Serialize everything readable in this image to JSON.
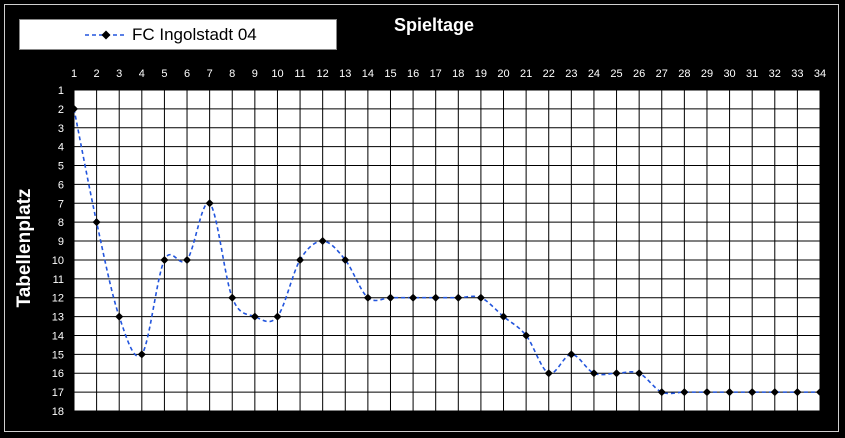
{
  "legend": {
    "label": "FC Ingolstadt 04"
  },
  "colors": {
    "series": "#2255dd",
    "marker": "#000000",
    "grid": "#000000",
    "plot_bg": "#ffffff",
    "background": "#000000",
    "text": "#ffffff"
  },
  "chart_data": {
    "type": "line",
    "title": "Spieltage",
    "xlabel": "",
    "ylabel": "Tabellenplatz",
    "x": [
      1,
      2,
      3,
      4,
      5,
      6,
      7,
      8,
      9,
      10,
      11,
      12,
      13,
      14,
      15,
      16,
      17,
      18,
      19,
      20,
      21,
      22,
      23,
      24,
      25,
      26,
      27,
      28,
      29,
      30,
      31,
      32,
      33,
      34
    ],
    "xlim": [
      1,
      34
    ],
    "ylim": [
      1,
      18
    ],
    "y_inverted": true,
    "x_axis_position": "top",
    "grid": true,
    "legend_position": "top-left",
    "series": [
      {
        "name": "FC Ingolstadt 04",
        "style": "dashed line with diamond markers",
        "values": [
          2,
          8,
          13,
          15,
          10,
          10,
          7,
          12,
          13,
          13,
          10,
          9,
          10,
          12,
          12,
          12,
          12,
          12,
          12,
          13,
          14,
          16,
          15,
          16,
          16,
          16,
          17,
          17,
          17,
          17,
          17,
          17,
          17,
          17
        ]
      }
    ]
  }
}
